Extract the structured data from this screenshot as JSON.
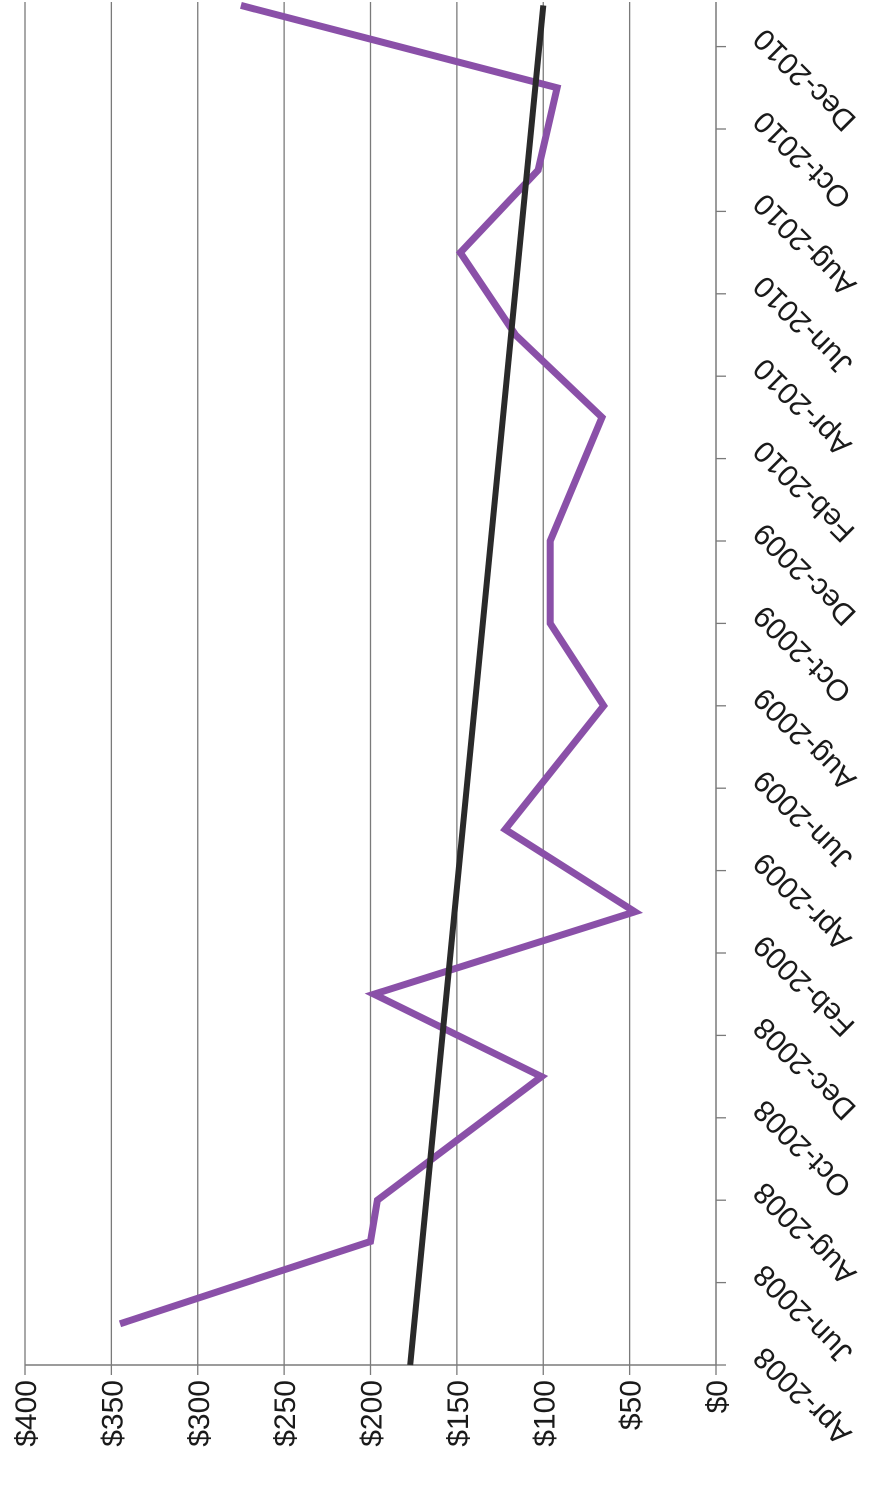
{
  "chart_data": {
    "type": "line",
    "title": "",
    "xlabel": "",
    "ylabel": "",
    "orientation": "rotated-90-clockwise",
    "grid": true,
    "ylim": [
      0,
      400
    ],
    "y_ticks": [
      "$0",
      "$50",
      "$100",
      "$150",
      "$200",
      "$250",
      "$300",
      "$350",
      "$400"
    ],
    "x_tick_labels": [
      "Apr-2008",
      "Jun-2008",
      "Aug-2008",
      "Oct-2008",
      "Dec-2008",
      "Feb-2009",
      "Apr-2009",
      "Jun-2009",
      "Aug-2009",
      "Oct-2009",
      "Dec-2009",
      "Feb-2010",
      "Apr-2010",
      "Jun-2010",
      "Aug-2010",
      "Oct-2010",
      "Dec-2010"
    ],
    "series": [
      {
        "color": "#8a50a8",
        "points": [
          {
            "x": "May-2008",
            "y": 345
          },
          {
            "x": "Jul-2008",
            "y": 200
          },
          {
            "x": "Aug-2008",
            "y": 196
          },
          {
            "x": "Nov-2008",
            "y": 101
          },
          {
            "x": "Jan-2009",
            "y": 198
          },
          {
            "x": "Mar-2009",
            "y": 47
          },
          {
            "x": "May-2009",
            "y": 122
          },
          {
            "x": "Jul-2009",
            "y": 84
          },
          {
            "x": "Aug-2009",
            "y": 65
          },
          {
            "x": "Oct-2009",
            "y": 96
          },
          {
            "x": "Dec-2009",
            "y": 96
          },
          {
            "x": "Mar-2010",
            "y": 66
          },
          {
            "x": "May-2010",
            "y": 116
          },
          {
            "x": "Jul-2010",
            "y": 148
          },
          {
            "x": "Sep-2010",
            "y": 103
          },
          {
            "x": "Nov-2010",
            "y": 92
          },
          {
            "x": "Jan-2011",
            "y": 275
          }
        ]
      },
      {
        "color": "#2a2a2a",
        "points": [
          {
            "x": "Apr-2008",
            "y": 177
          },
          {
            "x": "Jan-2011",
            "y": 100
          }
        ]
      }
    ]
  }
}
